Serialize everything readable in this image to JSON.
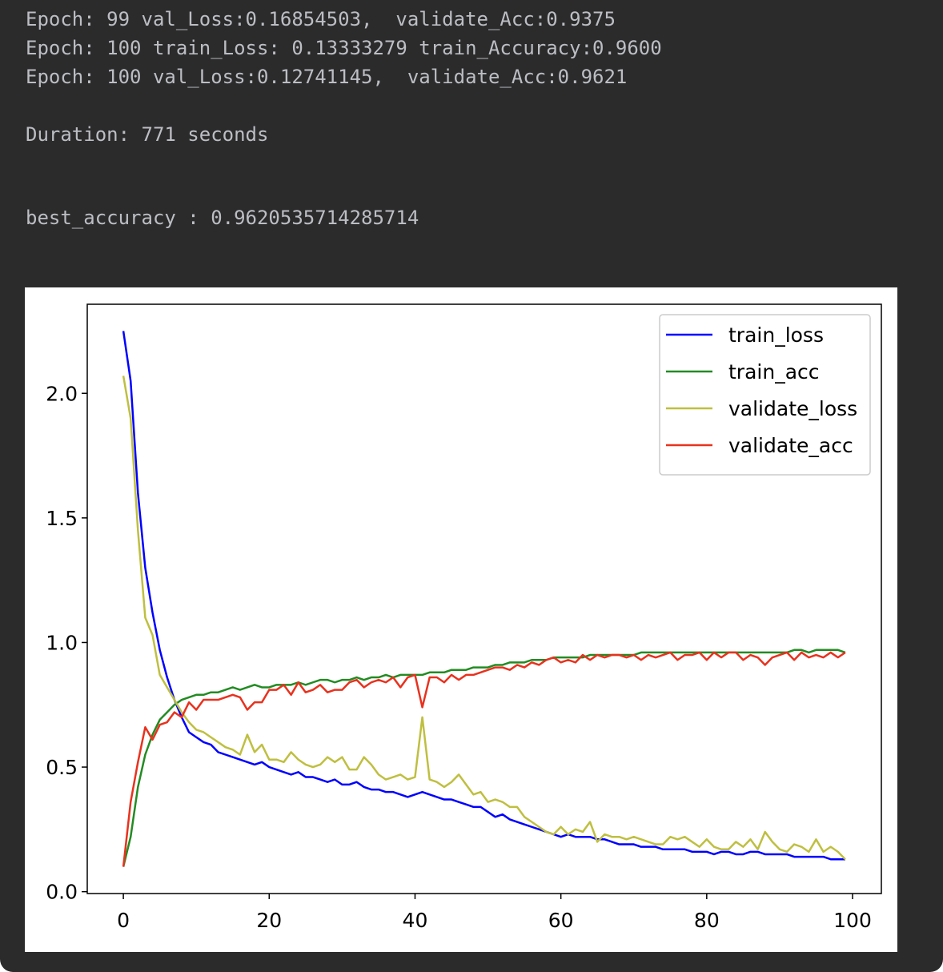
{
  "console": {
    "lines": [
      {
        "text": "Epoch: 99 val_Loss:0.16854503,  validate_Acc:0.9375"
      },
      {
        "text": "Epoch: 100 train_Loss: 0.13333279 train_Accuracy:0.9600"
      },
      {
        "text": "Epoch: 100 val_Loss:0.12741145,  validate_Acc:0.9621"
      },
      {
        "text": "Duration: 771 seconds"
      },
      {
        "text": "best_accuracy : 0.9620535714285714"
      }
    ]
  },
  "chart_data": {
    "type": "line",
    "x": [
      0,
      1,
      2,
      3,
      4,
      5,
      6,
      7,
      8,
      9,
      10,
      11,
      12,
      13,
      14,
      15,
      16,
      17,
      18,
      19,
      20,
      21,
      22,
      23,
      24,
      25,
      26,
      27,
      28,
      29,
      30,
      31,
      32,
      33,
      34,
      35,
      36,
      37,
      38,
      39,
      40,
      41,
      42,
      43,
      44,
      45,
      46,
      47,
      48,
      49,
      50,
      51,
      52,
      53,
      54,
      55,
      56,
      57,
      58,
      59,
      60,
      61,
      62,
      63,
      64,
      65,
      66,
      67,
      68,
      69,
      70,
      71,
      72,
      73,
      74,
      75,
      76,
      77,
      78,
      79,
      80,
      81,
      82,
      83,
      84,
      85,
      86,
      87,
      88,
      89,
      90,
      91,
      92,
      93,
      94,
      95,
      96,
      97,
      98,
      99
    ],
    "series": [
      {
        "name": "train_loss",
        "color": "#0000ff",
        "values": [
          2.25,
          2.05,
          1.6,
          1.3,
          1.12,
          0.97,
          0.86,
          0.77,
          0.7,
          0.64,
          0.62,
          0.6,
          0.59,
          0.56,
          0.55,
          0.54,
          0.53,
          0.52,
          0.51,
          0.52,
          0.5,
          0.49,
          0.48,
          0.47,
          0.48,
          0.46,
          0.46,
          0.45,
          0.44,
          0.45,
          0.43,
          0.43,
          0.44,
          0.42,
          0.41,
          0.41,
          0.4,
          0.4,
          0.39,
          0.38,
          0.39,
          0.4,
          0.39,
          0.38,
          0.37,
          0.37,
          0.36,
          0.35,
          0.34,
          0.34,
          0.32,
          0.3,
          0.31,
          0.29,
          0.28,
          0.27,
          0.26,
          0.25,
          0.24,
          0.23,
          0.22,
          0.23,
          0.22,
          0.22,
          0.22,
          0.21,
          0.21,
          0.2,
          0.19,
          0.19,
          0.19,
          0.18,
          0.18,
          0.18,
          0.17,
          0.17,
          0.17,
          0.17,
          0.16,
          0.16,
          0.16,
          0.15,
          0.16,
          0.16,
          0.15,
          0.15,
          0.16,
          0.16,
          0.15,
          0.15,
          0.15,
          0.15,
          0.14,
          0.14,
          0.14,
          0.14,
          0.14,
          0.13,
          0.13,
          0.13
        ]
      },
      {
        "name": "train_acc",
        "color": "#228b22",
        "values": [
          0.1,
          0.22,
          0.42,
          0.55,
          0.63,
          0.69,
          0.72,
          0.75,
          0.77,
          0.78,
          0.79,
          0.79,
          0.8,
          0.8,
          0.81,
          0.82,
          0.81,
          0.82,
          0.83,
          0.82,
          0.82,
          0.83,
          0.83,
          0.83,
          0.84,
          0.83,
          0.84,
          0.85,
          0.85,
          0.84,
          0.85,
          0.85,
          0.86,
          0.85,
          0.86,
          0.86,
          0.87,
          0.86,
          0.87,
          0.87,
          0.87,
          0.87,
          0.88,
          0.88,
          0.88,
          0.89,
          0.89,
          0.89,
          0.9,
          0.9,
          0.9,
          0.91,
          0.91,
          0.92,
          0.92,
          0.92,
          0.93,
          0.93,
          0.93,
          0.94,
          0.94,
          0.94,
          0.94,
          0.94,
          0.95,
          0.95,
          0.95,
          0.95,
          0.95,
          0.95,
          0.95,
          0.96,
          0.96,
          0.96,
          0.96,
          0.96,
          0.96,
          0.96,
          0.96,
          0.96,
          0.96,
          0.96,
          0.96,
          0.96,
          0.96,
          0.96,
          0.96,
          0.96,
          0.96,
          0.96,
          0.96,
          0.96,
          0.97,
          0.97,
          0.96,
          0.97,
          0.97,
          0.97,
          0.97,
          0.96
        ]
      },
      {
        "name": "validate_loss",
        "color": "#bfbf40",
        "values": [
          2.07,
          1.9,
          1.45,
          1.1,
          1.03,
          0.87,
          0.82,
          0.77,
          0.72,
          0.68,
          0.65,
          0.64,
          0.62,
          0.6,
          0.58,
          0.57,
          0.55,
          0.63,
          0.56,
          0.59,
          0.53,
          0.53,
          0.52,
          0.56,
          0.53,
          0.51,
          0.5,
          0.51,
          0.54,
          0.52,
          0.54,
          0.49,
          0.49,
          0.54,
          0.51,
          0.47,
          0.45,
          0.46,
          0.47,
          0.45,
          0.46,
          0.7,
          0.45,
          0.44,
          0.42,
          0.44,
          0.47,
          0.43,
          0.39,
          0.4,
          0.36,
          0.37,
          0.36,
          0.34,
          0.34,
          0.3,
          0.28,
          0.26,
          0.24,
          0.23,
          0.26,
          0.23,
          0.25,
          0.24,
          0.28,
          0.2,
          0.23,
          0.22,
          0.22,
          0.21,
          0.22,
          0.21,
          0.2,
          0.19,
          0.19,
          0.22,
          0.21,
          0.22,
          0.2,
          0.18,
          0.21,
          0.18,
          0.17,
          0.17,
          0.2,
          0.18,
          0.21,
          0.17,
          0.24,
          0.2,
          0.17,
          0.16,
          0.19,
          0.18,
          0.16,
          0.21,
          0.16,
          0.18,
          0.16,
          0.13
        ]
      },
      {
        "name": "validate_acc",
        "color": "#e8321e",
        "values": [
          0.1,
          0.36,
          0.52,
          0.66,
          0.61,
          0.67,
          0.68,
          0.72,
          0.7,
          0.76,
          0.73,
          0.77,
          0.77,
          0.77,
          0.78,
          0.79,
          0.78,
          0.73,
          0.76,
          0.76,
          0.81,
          0.81,
          0.83,
          0.79,
          0.84,
          0.8,
          0.81,
          0.83,
          0.8,
          0.81,
          0.81,
          0.84,
          0.85,
          0.82,
          0.84,
          0.85,
          0.84,
          0.86,
          0.82,
          0.86,
          0.87,
          0.74,
          0.86,
          0.86,
          0.84,
          0.87,
          0.85,
          0.87,
          0.87,
          0.88,
          0.89,
          0.9,
          0.9,
          0.89,
          0.91,
          0.9,
          0.92,
          0.91,
          0.93,
          0.94,
          0.92,
          0.93,
          0.92,
          0.95,
          0.93,
          0.95,
          0.94,
          0.95,
          0.95,
          0.94,
          0.95,
          0.93,
          0.95,
          0.94,
          0.95,
          0.96,
          0.93,
          0.95,
          0.95,
          0.96,
          0.93,
          0.96,
          0.94,
          0.96,
          0.96,
          0.93,
          0.95,
          0.94,
          0.91,
          0.94,
          0.95,
          0.96,
          0.93,
          0.96,
          0.94,
          0.95,
          0.94,
          0.96,
          0.94,
          0.96
        ]
      }
    ],
    "xlim": [
      -4.95,
      103.95
    ],
    "ylim": [
      -0.0075,
      2.3575
    ],
    "xticks": [
      0,
      20,
      40,
      60,
      80,
      100
    ],
    "yticks": [
      {
        "value": 0,
        "label": "0.0"
      },
      {
        "value": 0.5,
        "label": "0.5"
      },
      {
        "value": 1,
        "label": "1.0"
      },
      {
        "value": 1.5,
        "label": "1.5"
      },
      {
        "value": 2,
        "label": "2.0"
      }
    ],
    "legend": "upper right"
  }
}
